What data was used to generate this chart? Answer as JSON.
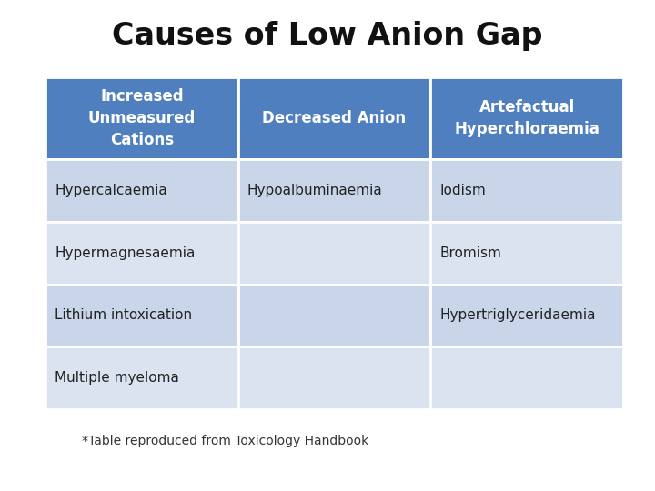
{
  "title": "Causes of Low Anion Gap",
  "title_fontsize": 24,
  "title_fontweight": "bold",
  "footnote": "*Table reproduced from Toxicology Handbook",
  "footnote_fontsize": 10,
  "header_bg_color": "#4f7fbf",
  "header_text_color": "#ffffff",
  "row_bg_color_odd": "#c9d5e8",
  "row_bg_color_even": "#dce3f0",
  "table_border_color": "#ffffff",
  "text_color_body": "#222222",
  "headers": [
    "Increased\nUnmeasured\nCations",
    "Decreased Anion",
    "Artefactual\nHyperchloraemia"
  ],
  "rows": [
    [
      "Hypercalcaemia",
      "Hypoalbuminaemia",
      "Iodism"
    ],
    [
      "Hypermagnesaemia",
      "",
      "Bromism"
    ],
    [
      "Lithium intoxication",
      "",
      "Hypertriglyceridaemia"
    ],
    [
      "Multiple myeloma",
      "",
      ""
    ]
  ],
  "header_fontsize": 12,
  "body_fontsize": 11,
  "background_color": "#ffffff"
}
